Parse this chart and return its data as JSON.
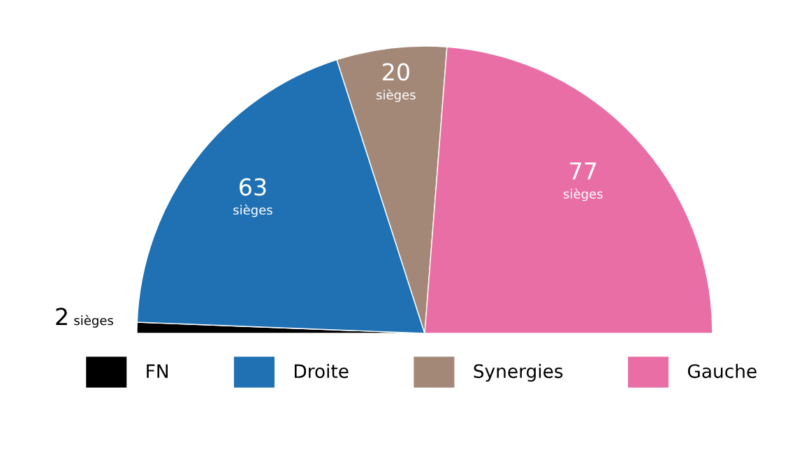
{
  "chart_data": {
    "type": "pie",
    "categories": [
      "FN",
      "Droite",
      "Synergies",
      "Gauche"
    ],
    "values": [
      2,
      63,
      20,
      77
    ],
    "colors": [
      "#000000",
      "#1f71b4",
      "#a38878",
      "#e86ea5"
    ],
    "value_labels": [
      "2 sièges",
      "63 sièges",
      "20 sièges",
      "77 sièges"
    ],
    "legend": "bottom"
  }
}
